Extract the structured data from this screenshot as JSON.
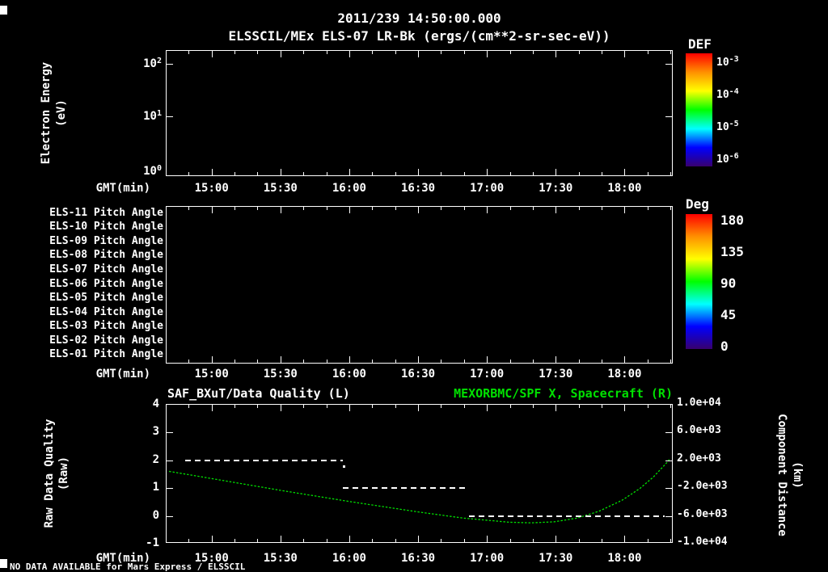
{
  "header": {
    "date_title": "2011/239 14:50:00.000",
    "plot_title": "ELSSCIL/MEx ELS-07 LR-Bk (ergs/(cm**2-sr-sec-eV))"
  },
  "xaxis": {
    "label": "GMT(min)",
    "ticks": [
      "15:00",
      "15:30",
      "16:00",
      "16:30",
      "17:00",
      "17:30",
      "18:00"
    ]
  },
  "panel1": {
    "ylabel_lines": [
      "Electron Energy",
      "(eV)"
    ],
    "yticks": [
      {
        "base": "10",
        "exp": "2"
      },
      {
        "base": "10",
        "exp": "1"
      },
      {
        "base": "10",
        "exp": "0"
      }
    ]
  },
  "colorbar_def": {
    "title": "DEF",
    "labels": [
      {
        "base": "10",
        "exp": "-3"
      },
      {
        "base": "10",
        "exp": "-4"
      },
      {
        "base": "10",
        "exp": "-5"
      },
      {
        "base": "10",
        "exp": "-6"
      }
    ]
  },
  "colorbar_deg": {
    "title": "Deg",
    "labels": [
      "180",
      "135",
      "90",
      "45",
      "0"
    ]
  },
  "panel2": {
    "rows": [
      "ELS-11 Pitch Angle",
      "ELS-10 Pitch Angle",
      "ELS-09 Pitch Angle",
      "ELS-08 Pitch Angle",
      "ELS-07 Pitch Angle",
      "ELS-06 Pitch Angle",
      "ELS-05 Pitch Angle",
      "ELS-04 Pitch Angle",
      "ELS-03 Pitch Angle",
      "ELS-02 Pitch Angle",
      "ELS-01 Pitch Angle"
    ]
  },
  "panel3": {
    "title_left": "SAF_BXuT/Data Quality (L)",
    "title_right": "MEXORBMC/SPF X, Spacecraft (R)",
    "left_ticks": [
      "4",
      "3",
      "2",
      "1",
      "0",
      "-1"
    ],
    "right_ticks": [
      "1.0e+04",
      "6.0e+03",
      "2.0e+03",
      "-2.0e+03",
      "-6.0e+03",
      "-1.0e+04"
    ],
    "ylabel_left_lines": [
      "Raw Data Quality",
      "(Raw)"
    ],
    "ylabel_right_lines": [
      "Component Distance",
      "(km)"
    ]
  },
  "footer": {
    "no_data": "NO DATA AVAILABLE for Mars Express / ELSSCIL"
  },
  "colors": {
    "background": "#000000",
    "foreground": "#ffffff",
    "accent_green": "#00e100",
    "rainbow": [
      "#ff0000",
      "#ff9000",
      "#ffff00",
      "#00ff00",
      "#00ffff",
      "#0000ff",
      "#38006e"
    ]
  },
  "chart_data": [
    {
      "type": "heatmap",
      "title": "ELSSCIL/MEx ELS-07 LR-Bk (ergs/(cm**2-sr-sec-eV))",
      "xlabel": "GMT(min)",
      "ylabel": "Electron Energy (eV)",
      "x_range": [
        "14:40",
        "18:21"
      ],
      "x_ticks": [
        "15:00",
        "15:30",
        "16:00",
        "16:30",
        "17:00",
        "17:30",
        "18:00"
      ],
      "y_scale": "log",
      "y_ticks": [
        "10^0",
        "10^1",
        "10^2"
      ],
      "colorbar": {
        "title": "DEF",
        "scale": "log",
        "tick_labels": [
          "10^-3",
          "10^-4",
          "10^-5",
          "10^-6"
        ]
      },
      "values": [],
      "note": "panel empty - no data available"
    },
    {
      "type": "heatmap",
      "rows": [
        "ELS-11 Pitch Angle",
        "ELS-10 Pitch Angle",
        "ELS-09 Pitch Angle",
        "ELS-08 Pitch Angle",
        "ELS-07 Pitch Angle",
        "ELS-06 Pitch Angle",
        "ELS-05 Pitch Angle",
        "ELS-04 Pitch Angle",
        "ELS-03 Pitch Angle",
        "ELS-02 Pitch Angle",
        "ELS-01 Pitch Angle"
      ],
      "xlabel": "GMT(min)",
      "x_range": [
        "14:40",
        "18:21"
      ],
      "x_ticks": [
        "15:00",
        "15:30",
        "16:00",
        "16:30",
        "17:00",
        "17:30",
        "18:00"
      ],
      "colorbar": {
        "title": "Deg",
        "tick_labels": [
          "180",
          "135",
          "90",
          "45",
          "0"
        ],
        "range": [
          0,
          180
        ]
      },
      "values": [],
      "note": "panel empty - no data available"
    },
    {
      "type": "line",
      "xlabel": "GMT(min)",
      "x_range": [
        "14:40",
        "18:21"
      ],
      "x_ticks": [
        "15:00",
        "15:30",
        "16:00",
        "16:30",
        "17:00",
        "17:30",
        "18:00"
      ],
      "left_axis": {
        "label": "Raw Data Quality (Raw)",
        "range": [
          -1,
          4
        ],
        "ticks": [
          4,
          3,
          2,
          1,
          0,
          -1
        ]
      },
      "right_axis": {
        "label": "Component Distance (km)",
        "range": [
          -10000,
          10000
        ],
        "ticks": [
          "1.0e+04",
          "6.0e+03",
          "2.0e+03",
          "-2.0e+03",
          "-6.0e+03",
          "-1.0e+04"
        ]
      },
      "series": [
        {
          "name": "SAF_BXuT/Data Quality (L)",
          "axis": "left",
          "color": "#ffffff",
          "style": "dashed",
          "segments": [
            {
              "t_start": "14:48",
              "t_end": "15:57",
              "value": 2
            },
            {
              "t_start": "15:57",
              "t_end": "16:51",
              "value": 1
            },
            {
              "t_start": "16:52",
              "t_end": "18:17",
              "value": 0
            }
          ]
        },
        {
          "name": "MEXORBMC/SPF X, Spacecraft (R)",
          "axis": "right",
          "color": "#00e100",
          "style": "dotted",
          "points": [
            [
              14.67,
              300
            ],
            [
              15.0,
              -800
            ],
            [
              15.5,
              -2500
            ],
            [
              16.0,
              -4100
            ],
            [
              16.5,
              -5600
            ],
            [
              16.83,
              -6500
            ],
            [
              17.0,
              -6800
            ],
            [
              17.17,
              -7100
            ],
            [
              17.33,
              -7200
            ],
            [
              17.5,
              -7050
            ],
            [
              17.67,
              -6500
            ],
            [
              17.83,
              -5500
            ],
            [
              18.0,
              -3900
            ],
            [
              18.13,
              -2200
            ],
            [
              18.23,
              -500
            ],
            [
              18.32,
              1400
            ],
            [
              18.35,
              2100
            ]
          ]
        }
      ]
    }
  ]
}
